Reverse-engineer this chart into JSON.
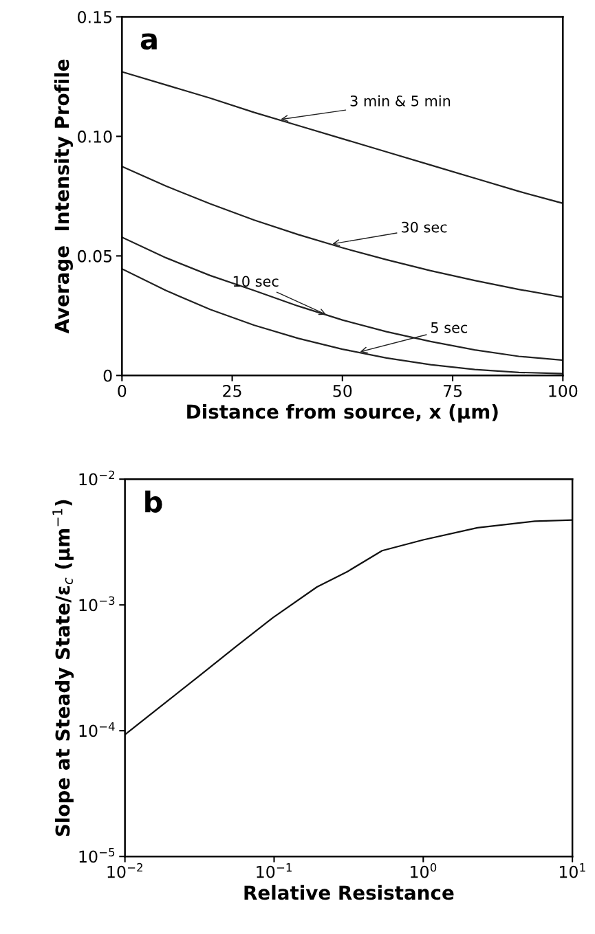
{
  "chart_data": [
    {
      "type": "line",
      "xlabel": "Distance from source, x (μm)",
      "ylabel": "Average  Intensity Profile",
      "xlim": [
        0,
        100
      ],
      "xticks": [
        0,
        25,
        50,
        75,
        100
      ],
      "ylim": [
        0,
        0.15
      ],
      "yticks": [
        {
          "value": 0,
          "label": "0"
        },
        {
          "value": 0.05,
          "label": "0.05"
        },
        {
          "value": 0.1,
          "label": "0.10"
        },
        {
          "value": 0.15,
          "label": "0.15"
        }
      ],
      "grid": false,
      "legend": false,
      "marker": "none",
      "line_style": "solid",
      "x": [
        0,
        10,
        20,
        30,
        40,
        50,
        60,
        70,
        80,
        90,
        100
      ],
      "series": [
        {
          "color": "#222222",
          "values": [
            0.127,
            0.1215,
            0.116,
            0.11,
            0.1045,
            0.099,
            0.0935,
            0.088,
            0.0825,
            0.077,
            0.072
          ]
        },
        {
          "color": "#222222",
          "values": [
            0.0874,
            0.0792,
            0.0718,
            0.065,
            0.0589,
            0.0534,
            0.0484,
            0.0438,
            0.0397,
            0.036,
            0.0327
          ]
        },
        {
          "color": "#222222",
          "values": [
            0.0578,
            0.0492,
            0.0418,
            0.0355,
            0.029,
            0.0232,
            0.0183,
            0.0142,
            0.0107,
            0.008,
            0.0064
          ]
        },
        {
          "color": "#222222",
          "values": [
            0.0446,
            0.0355,
            0.0276,
            0.021,
            0.0155,
            0.011,
            0.0073,
            0.0045,
            0.0025,
            0.0013,
            0.0008
          ]
        }
      ],
      "annotations": [
        "a",
        {
          "text": "3 min & 5 min",
          "x": 35.6,
          "y": 0.107
        },
        {
          "text": "30 sec",
          "x": 47.3,
          "y": 0.0549
        },
        {
          "text": "10 sec",
          "x": 46.7,
          "y": 0.0251
        },
        {
          "text": "5 sec",
          "x": 53.6,
          "y": 0.0097
        }
      ]
    },
    {
      "type": "line",
      "xlabel": "Relative Resistance",
      "ylabel": "Slope at Steady State/ε$_{c}$ (μm$^{−1}$)",
      "log": "xy",
      "xlim": [
        0.01,
        10
      ],
      "xticks": [
        {
          "value": 0.01,
          "label": "10$^{−2}$"
        },
        {
          "value": 0.1,
          "label": "10$^{−1}$"
        },
        {
          "value": 1,
          "label": "10$^{0}$"
        },
        {
          "value": 10,
          "label": "10$^{1}$"
        }
      ],
      "ylim": [
        1e-05,
        0.01
      ],
      "yticks": [
        {
          "value": 1e-05,
          "label": "10$^{−5}$"
        },
        {
          "value": 0.0001,
          "label": "10$^{−4}$"
        },
        {
          "value": 0.001,
          "label": "10$^{−3}$"
        },
        {
          "value": 0.01,
          "label": "10$^{−2}$"
        }
      ],
      "grid": false,
      "legend": false,
      "marker": "none",
      "line_style": "solid",
      "x": [
        0.01,
        0.031,
        0.056,
        0.098,
        0.194,
        0.31,
        0.53,
        1,
        2.31,
        5.6,
        10
      ],
      "series": [
        {
          "color": "#111111",
          "values": [
            9.3e-05,
            0.000269,
            0.00047,
            0.00079,
            0.00139,
            0.00184,
            0.0027,
            0.00329,
            0.00411,
            0.00463,
            0.00473
          ]
        }
      ],
      "annotations": [
        "b"
      ]
    }
  ]
}
